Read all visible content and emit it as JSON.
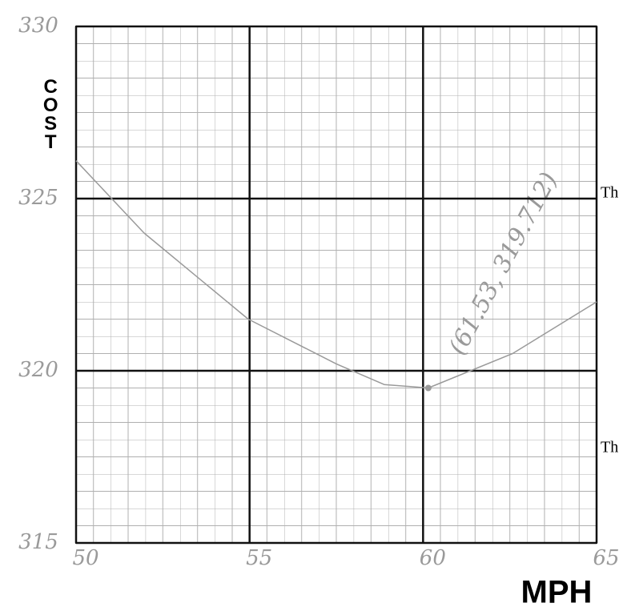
{
  "chart_data": {
    "type": "line",
    "x_label": "MPH",
    "y_label": "COST",
    "x": [
      50,
      51.96,
      54.96,
      57.5,
      58.88,
      60.15,
      62.58,
      65
    ],
    "series": [
      {
        "values": [
          326.1,
          324.0,
          321.5,
          320.2,
          319.6,
          319.5,
          320.5,
          322.0
        ],
        "color": "#9a9a9a"
      }
    ],
    "xlim": [
      50,
      65
    ],
    "ylim": [
      315,
      330
    ],
    "xticks": [
      50,
      55,
      60,
      65
    ],
    "yticks": [
      315,
      320,
      325,
      330
    ],
    "grid": true,
    "annotation": "(61.53, 319.712)",
    "margin_texts": [
      "Th",
      "Th"
    ]
  }
}
